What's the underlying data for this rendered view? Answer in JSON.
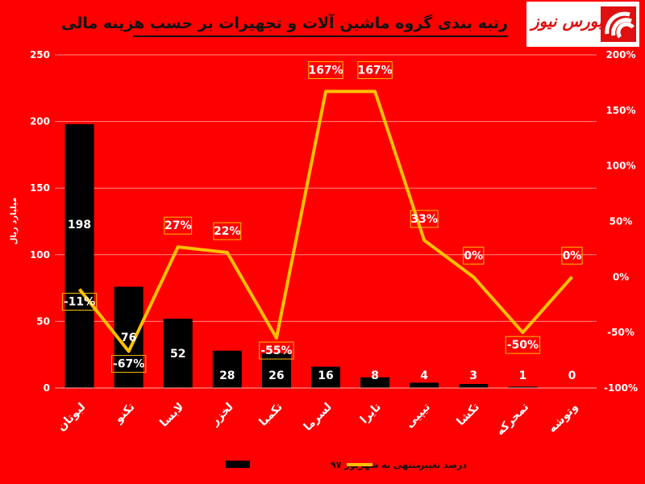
{
  "header": {
    "title": "رتبه بندی گروه ماشین آلات و تجهیزات بر حسب هزینه مالی",
    "logo_text": "بورس نیوز"
  },
  "colors": {
    "background": "#ff0000",
    "bars": "#000000",
    "line": "#ffc000",
    "logo_red": "#e01010",
    "label_border": "#ffc000"
  },
  "chart_data": {
    "type": "bar",
    "categories": [
      "لبوتان",
      "تکنو",
      "لابسا",
      "لخزر",
      "تکمبا",
      "لسرما",
      "تایرا",
      "تیپیی",
      "تکشا",
      "تمحرکه",
      "وتوشه"
    ],
    "series": [
      {
        "name": "منتهی به شهریور ۹۷",
        "type": "bar",
        "axis": "left",
        "values": [
          198,
          76,
          52,
          28,
          26,
          16,
          8,
          4,
          3,
          1,
          0
        ]
      },
      {
        "name": "درصد تغییر",
        "type": "line",
        "axis": "right",
        "values": [
          -11,
          -67,
          27,
          22,
          -55,
          167,
          167,
          33,
          0,
          -50,
          0
        ],
        "labels": [
          "-11%",
          "-67%",
          "27%",
          "22%",
          "-55%",
          "167%",
          "167%",
          "33%",
          "0%",
          "-50%",
          "0%"
        ]
      }
    ],
    "ylabel": "میلیارد ریال",
    "ylim": [
      0,
      250
    ],
    "yticks": [
      "0",
      "50",
      "100",
      "150",
      "200",
      "250"
    ],
    "y2lim": [
      -100,
      200
    ],
    "y2ticks": [
      "-100%",
      "-50%",
      "0%",
      "50%",
      "100%",
      "150%",
      "200%"
    ],
    "grid": true,
    "legend": "bottom"
  }
}
